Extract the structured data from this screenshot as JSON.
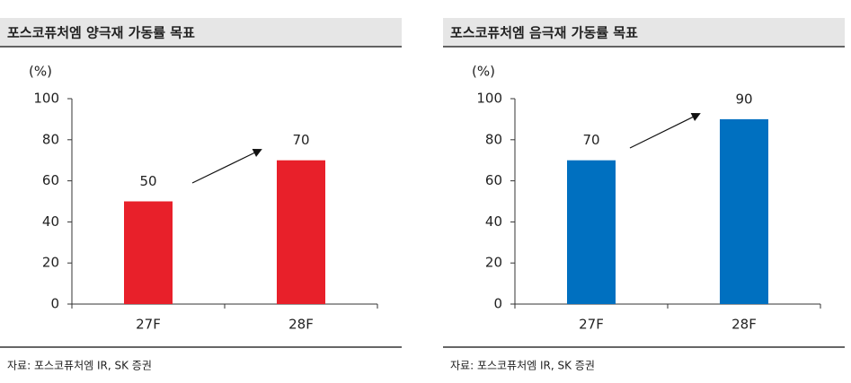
{
  "chart_data": [
    {
      "type": "bar",
      "title": "포스코퓨처엠 양극재 가동률 목표",
      "y_label": "(%)",
      "categories": [
        "27F",
        "28F"
      ],
      "values": [
        50,
        70
      ],
      "color": "#e8202a",
      "ylim": [
        0,
        100
      ],
      "yticks": [
        0,
        20,
        40,
        60,
        80,
        100
      ],
      "source": "자료: 포스코퓨처엠 IR, SK 증권"
    },
    {
      "type": "bar",
      "title": "포스코퓨처엠 음극재 가동률 목표",
      "y_label": "(%)",
      "categories": [
        "27F",
        "28F"
      ],
      "values": [
        70,
        90
      ],
      "color": "#0070c0",
      "ylim": [
        0,
        100
      ],
      "yticks": [
        0,
        20,
        40,
        60,
        80,
        100
      ],
      "source": "자료: 포스코퓨처엠 IR, SK 증권"
    }
  ]
}
